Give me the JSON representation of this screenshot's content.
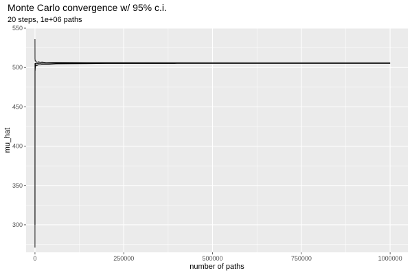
{
  "chart_data": {
    "type": "line",
    "title": "Monte Carlo convergence w/ 95% c.i.",
    "subtitle": "20 steps, 1e+06 paths",
    "xlabel": "number of paths",
    "ylabel": "mu_hat",
    "xlim": [
      -25000,
      1050000
    ],
    "ylim": [
      265,
      550
    ],
    "x_ticks": [
      0,
      250000,
      500000,
      750000,
      1000000
    ],
    "x_tick_labels": [
      "0",
      "250000",
      "500000",
      "750000",
      "1000000"
    ],
    "y_ticks": [
      300,
      350,
      400,
      450,
      500,
      550
    ],
    "y_tick_labels": [
      "300",
      "350",
      "400",
      "450",
      "500",
      "550"
    ],
    "grid": true,
    "panel_background": "#ebebeb",
    "grid_color": "#ffffff",
    "line_color": "#000000",
    "series": [
      {
        "role": "estimate",
        "x": [
          1,
          100,
          500,
          1000,
          2000,
          3000,
          5000,
          8000,
          10000,
          15000,
          20000,
          30000,
          40000,
          60000,
          100000,
          200000,
          400000,
          600000,
          800000,
          1000000
        ],
        "y": [
          300,
          505,
          502,
          504,
          505.5,
          505,
          504.5,
          505,
          505.5,
          505.2,
          505.6,
          505.4,
          505.3,
          505.5,
          505.5,
          505.6,
          505.6,
          505.6,
          505.6,
          505.6
        ]
      },
      {
        "role": "upper 95% c.i.",
        "x": [
          1,
          100,
          500,
          1000,
          2000,
          3000,
          5000,
          8000,
          10000,
          15000,
          20000,
          30000,
          40000,
          60000,
          100000,
          200000,
          400000,
          600000,
          800000,
          1000000
        ],
        "y": [
          536,
          511,
          508,
          508.5,
          508.5,
          507.5,
          506.8,
          507,
          507.2,
          506.8,
          507,
          506.6,
          506.4,
          506.4,
          506.3,
          506.2,
          506.1,
          506,
          506,
          506
        ]
      },
      {
        "role": "lower 95% c.i.",
        "x": [
          1,
          100,
          500,
          1000,
          2000,
          3000,
          5000,
          8000,
          10000,
          15000,
          20000,
          30000,
          40000,
          60000,
          100000,
          200000,
          400000,
          600000,
          800000,
          1000000
        ],
        "y": [
          271,
          499,
          496,
          499.5,
          502.5,
          502.5,
          502.2,
          503,
          503.8,
          503.6,
          504.2,
          504.2,
          504.2,
          504.6,
          504.7,
          505,
          505.1,
          505.2,
          505.2,
          505.2
        ]
      }
    ]
  }
}
